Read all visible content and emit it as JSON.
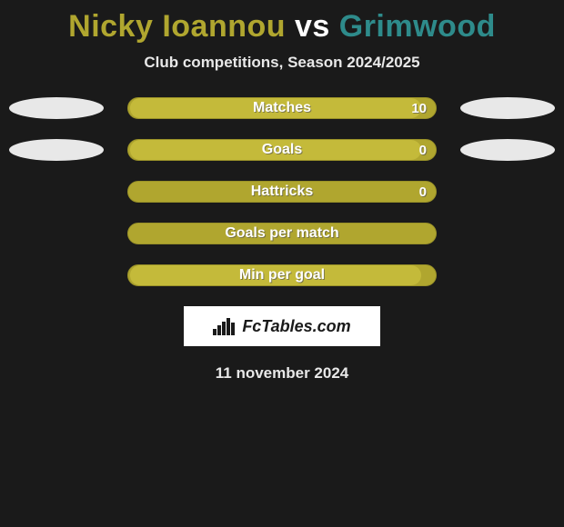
{
  "title": {
    "player1": "Nicky Ioannou",
    "vs": "vs",
    "player2": "Grimwood",
    "player1_color": "#b0a62f",
    "vs_color": "#ffffff",
    "player2_color": "#2e8b8b"
  },
  "subtitle": "Club competitions, Season 2024/2025",
  "bar_style": {
    "track_color": "#b0a62f",
    "track_border": "#9a9228",
    "fill_color": "#c4ba3a",
    "label_color": "#ffffff"
  },
  "ellipse_color": "#e8e8e8",
  "rows": [
    {
      "label": "Matches",
      "value": "10",
      "show_value": true,
      "fill_pct": 96,
      "left_ellipse": true,
      "right_ellipse": true
    },
    {
      "label": "Goals",
      "value": "0",
      "show_value": true,
      "fill_pct": 96,
      "left_ellipse": true,
      "right_ellipse": true
    },
    {
      "label": "Hattricks",
      "value": "0",
      "show_value": true,
      "fill_pct": 0,
      "left_ellipse": false,
      "right_ellipse": false
    },
    {
      "label": "Goals per match",
      "value": "",
      "show_value": false,
      "fill_pct": 0,
      "left_ellipse": false,
      "right_ellipse": false
    },
    {
      "label": "Min per goal",
      "value": "",
      "show_value": false,
      "fill_pct": 96,
      "left_ellipse": false,
      "right_ellipse": false
    }
  ],
  "logo": {
    "text": "FcTables.com",
    "bg": "#ffffff",
    "fg": "#1a1a1a"
  },
  "date": "11 november 2024",
  "background_color": "#1a1a1a"
}
